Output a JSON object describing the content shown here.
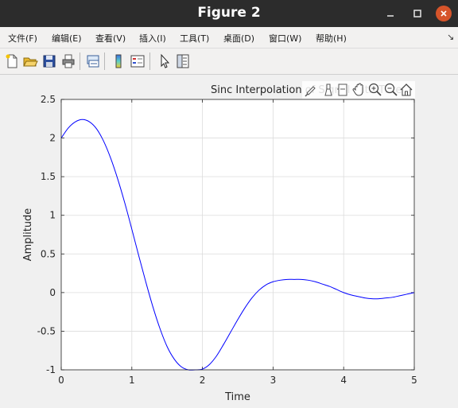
{
  "window": {
    "title": "Figure 2"
  },
  "menu": {
    "items": [
      "文件(F)",
      "编辑(E)",
      "查看(V)",
      "插入(I)",
      "工具(T)",
      "桌面(D)",
      "窗口(W)",
      "帮助(H)"
    ],
    "overflow_arrow": "↘"
  },
  "toolbar": {
    "buttons": [
      "new-figure-icon",
      "open-file-icon",
      "save-icon",
      "print-icon",
      "link-plot-icon",
      "colorbar-icon",
      "legend-icon",
      "pointer-icon",
      "property-inspector-icon"
    ]
  },
  "axes_toolbar": {
    "buttons": [
      "brush-icon",
      "data-tips-icon",
      "rotate-icon",
      "pan-icon",
      "zoom-in-icon",
      "zoom-out-icon",
      "home-icon"
    ]
  },
  "chart_data": {
    "type": "line",
    "title": "Sinc Interpolation of Signal with Thre",
    "xlabel": "Time",
    "ylabel": "Amplitude",
    "xlim": [
      0,
      5
    ],
    "ylim": [
      -1,
      2.5
    ],
    "xticks": [
      "0",
      "1",
      "2",
      "3",
      "4",
      "5"
    ],
    "yticks": [
      "-1",
      "-0.5",
      "0",
      "0.5",
      "1",
      "1.5",
      "2",
      "2.5"
    ],
    "grid": true,
    "line_color": "#0000ff",
    "series": [
      {
        "x": [
          0,
          0.1,
          0.2,
          0.3,
          0.4,
          0.5,
          0.6,
          0.7,
          0.8,
          0.9,
          1.0,
          1.1,
          1.2,
          1.3,
          1.4,
          1.5,
          1.6,
          1.7,
          1.8,
          1.9,
          2.0,
          2.1,
          2.2,
          2.3,
          2.4,
          2.5,
          2.6,
          2.7,
          2.8,
          2.9,
          3.0,
          3.1,
          3.2,
          3.3,
          3.4,
          3.5,
          3.6,
          3.7,
          3.8,
          3.9,
          4.0,
          4.1,
          4.2,
          4.3,
          4.4,
          4.5,
          4.6,
          4.7,
          4.8,
          4.9,
          5.0
        ],
        "y": [
          2.0,
          2.13,
          2.21,
          2.24,
          2.21,
          2.12,
          1.96,
          1.74,
          1.47,
          1.16,
          0.82,
          0.47,
          0.13,
          -0.19,
          -0.47,
          -0.7,
          -0.86,
          -0.96,
          -1.0,
          -1.0,
          -0.99,
          -0.93,
          -0.82,
          -0.67,
          -0.51,
          -0.35,
          -0.2,
          -0.07,
          0.03,
          0.1,
          0.14,
          0.16,
          0.17,
          0.17,
          0.17,
          0.16,
          0.14,
          0.11,
          0.08,
          0.04,
          0.0,
          -0.03,
          -0.05,
          -0.07,
          -0.08,
          -0.08,
          -0.07,
          -0.06,
          -0.04,
          -0.02,
          0.0
        ]
      }
    ]
  }
}
